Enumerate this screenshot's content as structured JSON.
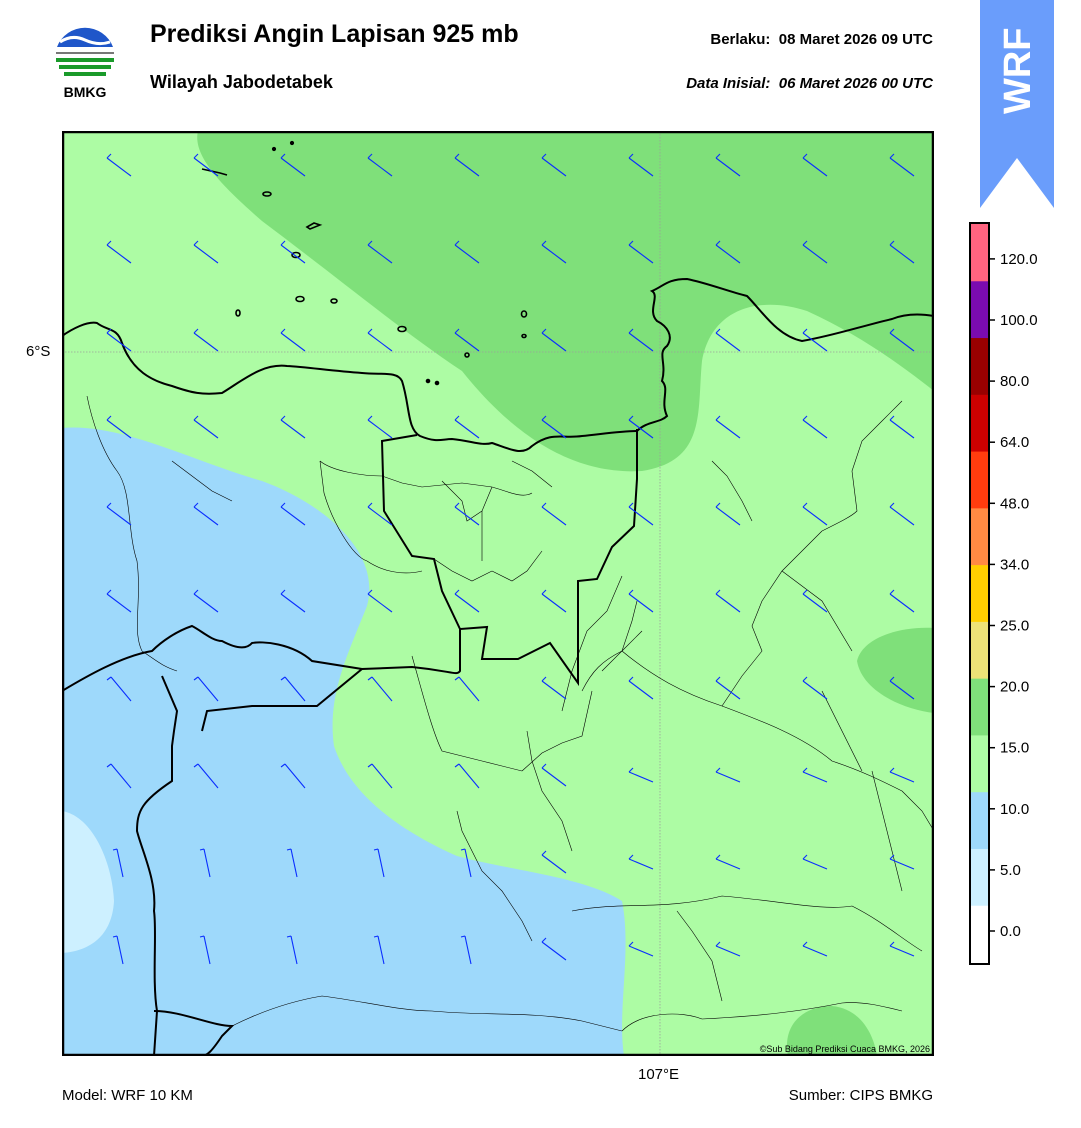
{
  "header": {
    "title": "Prediksi Angin Lapisan 925 mb",
    "subtitle": "Wilayah Jabodetabek",
    "valid_label": "Berlaku:",
    "valid_time": "08 Maret 2026 09 UTC",
    "init_label": "Data Inisial:",
    "init_time": "06 Maret 2026 00 UTC",
    "logo_text": "BMKG",
    "badge_text": "WRF"
  },
  "map": {
    "lat_label": "6°S",
    "lon_label": "107°E",
    "copyright": "©Sub Bidang Prediksi Cuaca BMKG, 2026"
  },
  "footer": {
    "model": "Model: WRF 10 KM",
    "source": "Sumber: CIPS BMKG"
  },
  "colorbar": {
    "ticks": [
      "0.0",
      "5.0",
      "10.0",
      "15.0",
      "20.0",
      "25.0",
      "34.0",
      "48.0",
      "64.0",
      "80.0",
      "100.0",
      "120.0"
    ],
    "colors": [
      "#ffffff",
      "#cdf0ff",
      "#9ed9fb",
      "#adfca4",
      "#7fe07a",
      "#ede277",
      "#ffcf00",
      "#ff8a43",
      "#ff3c0e",
      "#cc0000",
      "#990000",
      "#7a0bb0",
      "#ff6480"
    ]
  },
  "colors": {
    "badge": "#6a9dfb",
    "barb": "#0a2eff"
  }
}
